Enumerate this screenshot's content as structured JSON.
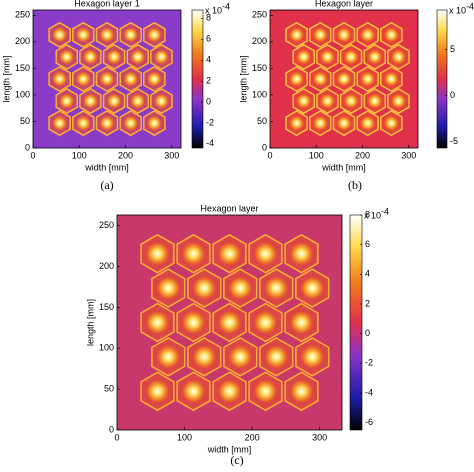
{
  "chart_data": [
    {
      "type": "heatmap",
      "title": "Hexagon layer 1",
      "xlabel": "width [mm]",
      "ylabel": "length [mm]",
      "xlim": [
        0,
        320
      ],
      "xticks": [
        0,
        100,
        200,
        300
      ],
      "ylim": [
        0,
        260
      ],
      "yticks": [
        0,
        50,
        100,
        150,
        200,
        250
      ],
      "colorbar_lim": [
        -4.4,
        8.8
      ],
      "colorbar_ticks": [
        -4,
        -2,
        0,
        2,
        4,
        6,
        8
      ],
      "colorbar_scale": "x 10",
      "colorbar_exponent": "-4",
      "caption": "(a)"
    },
    {
      "type": "heatmap",
      "title": "Hexagon layer",
      "xlabel": "width [mm]",
      "ylabel": "length [mm]",
      "xlim": [
        0,
        320
      ],
      "xticks": [
        0,
        100,
        200,
        300
      ],
      "ylim": [
        0,
        260
      ],
      "yticks": [
        0,
        50,
        100,
        150,
        200,
        250
      ],
      "colorbar_lim": [
        -5.7,
        9.3
      ],
      "colorbar_ticks": [
        -5,
        0,
        5
      ],
      "colorbar_scale": "x 10",
      "colorbar_exponent": "-4",
      "caption": "(b)"
    },
    {
      "type": "heatmap",
      "title": "Hexagon layer",
      "xlabel": "width [mm]",
      "ylabel": "length [mm]",
      "xlim": [
        0,
        333
      ],
      "xticks": [
        0,
        100,
        200,
        300
      ],
      "ylim": [
        0,
        263
      ],
      "yticks": [
        0,
        50,
        100,
        150,
        200,
        250
      ],
      "colorbar_lim": [
        -6.5,
        8
      ],
      "colorbar_ticks": [
        -6,
        -4,
        -2,
        0,
        2,
        4,
        6,
        8
      ],
      "colorbar_scale": "x 10",
      "colorbar_exponent": "-4",
      "caption": "(c)"
    }
  ]
}
